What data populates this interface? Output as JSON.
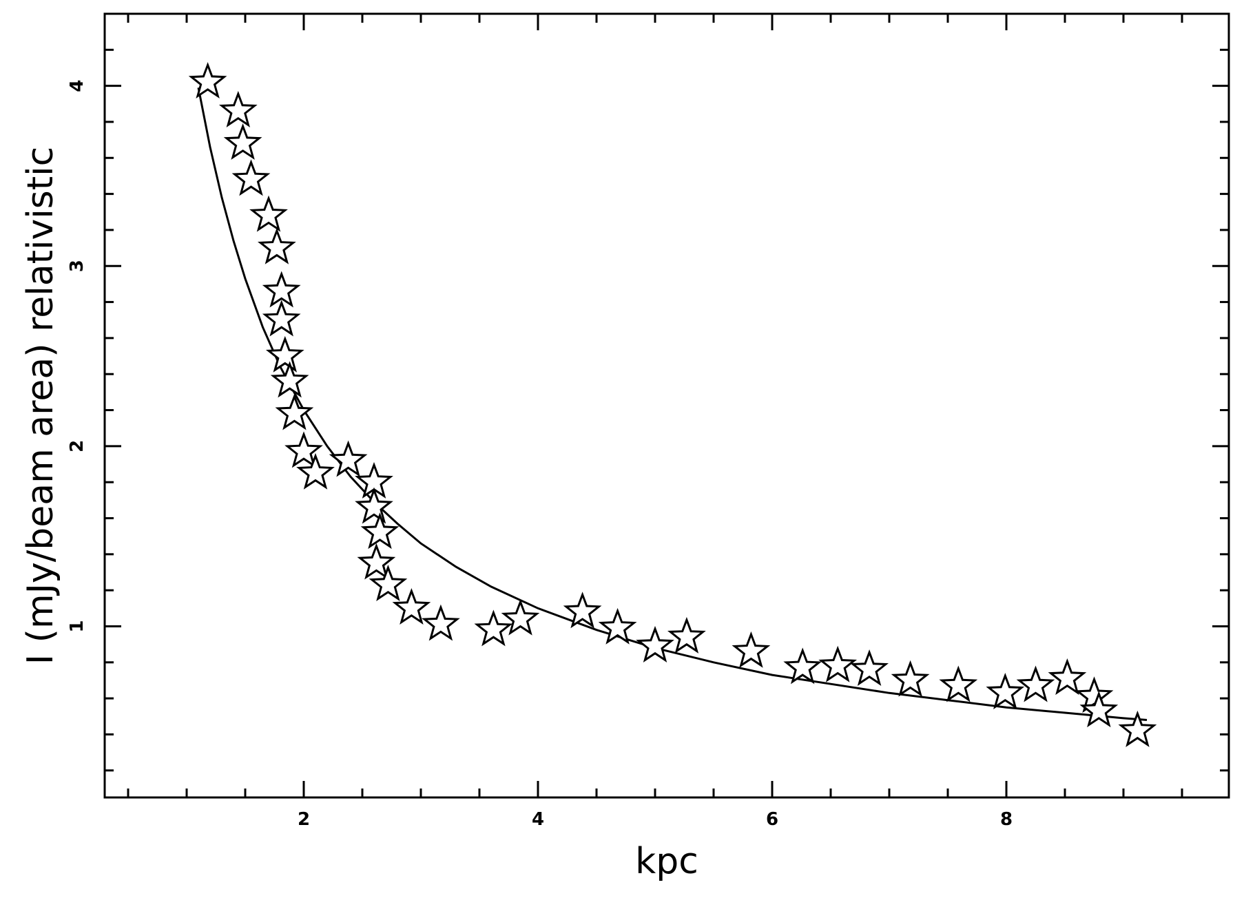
{
  "chart_data": {
    "type": "scatter",
    "xlabel": "kpc",
    "ylabel": "I (mJy/beam area) relativistic",
    "xlim": [
      0.3,
      9.9
    ],
    "ylim": [
      0.05,
      4.4
    ],
    "x_ticks": [
      {
        "value": 2,
        "label": "2"
      },
      {
        "value": 4,
        "label": "4"
      },
      {
        "value": 6,
        "label": "6"
      },
      {
        "value": 8,
        "label": "8"
      }
    ],
    "y_ticks": [
      {
        "value": 1,
        "label": "1"
      },
      {
        "value": 2,
        "label": "2"
      },
      {
        "value": 3,
        "label": "3"
      },
      {
        "value": 4,
        "label": "4"
      }
    ],
    "x_minor_step": 0.5,
    "y_minor_step": 0.2,
    "grid": false,
    "marker": "star-open",
    "colors": {
      "ink": "#000000",
      "marker_fill": "#ffffff"
    },
    "series": [
      {
        "kind": "scatter",
        "points": [
          [
            1.18,
            4.02
          ],
          [
            1.44,
            3.86
          ],
          [
            1.48,
            3.68
          ],
          [
            1.55,
            3.48
          ],
          [
            1.7,
            3.28
          ],
          [
            1.77,
            3.1
          ],
          [
            1.81,
            2.86
          ],
          [
            1.81,
            2.7
          ],
          [
            1.84,
            2.5
          ],
          [
            1.88,
            2.36
          ],
          [
            1.92,
            2.18
          ],
          [
            2.0,
            1.97
          ],
          [
            2.1,
            1.85
          ],
          [
            2.38,
            1.92
          ],
          [
            2.6,
            1.8
          ],
          [
            2.6,
            1.66
          ],
          [
            2.65,
            1.52
          ],
          [
            2.62,
            1.35
          ],
          [
            2.72,
            1.23
          ],
          [
            2.92,
            1.1
          ],
          [
            3.17,
            1.01
          ],
          [
            3.62,
            0.98
          ],
          [
            3.85,
            1.04
          ],
          [
            4.38,
            1.08
          ],
          [
            4.68,
            0.99
          ],
          [
            5.0,
            0.89
          ],
          [
            5.27,
            0.94
          ],
          [
            5.82,
            0.86
          ],
          [
            6.26,
            0.77
          ],
          [
            6.56,
            0.78
          ],
          [
            6.83,
            0.76
          ],
          [
            7.18,
            0.7
          ],
          [
            7.59,
            0.67
          ],
          [
            7.99,
            0.63
          ],
          [
            8.25,
            0.67
          ],
          [
            8.52,
            0.71
          ],
          [
            8.75,
            0.61
          ],
          [
            8.79,
            0.53
          ],
          [
            9.12,
            0.42
          ]
        ]
      },
      {
        "kind": "line",
        "curve": [
          [
            1.1,
            3.99
          ],
          [
            1.2,
            3.66
          ],
          [
            1.3,
            3.38
          ],
          [
            1.4,
            3.14
          ],
          [
            1.5,
            2.93
          ],
          [
            1.65,
            2.66
          ],
          [
            1.8,
            2.44
          ],
          [
            2.0,
            2.2
          ],
          [
            2.2,
            2.0
          ],
          [
            2.4,
            1.83
          ],
          [
            2.6,
            1.69
          ],
          [
            2.8,
            1.57
          ],
          [
            3.0,
            1.46
          ],
          [
            3.3,
            1.33
          ],
          [
            3.6,
            1.22
          ],
          [
            4.0,
            1.1
          ],
          [
            4.5,
            0.98
          ],
          [
            5.0,
            0.88
          ],
          [
            5.5,
            0.8
          ],
          [
            6.0,
            0.73
          ],
          [
            6.5,
            0.68
          ],
          [
            7.0,
            0.63
          ],
          [
            7.5,
            0.59
          ],
          [
            8.0,
            0.55
          ],
          [
            8.5,
            0.52
          ],
          [
            9.0,
            0.49
          ],
          [
            9.2,
            0.48
          ]
        ]
      }
    ]
  }
}
